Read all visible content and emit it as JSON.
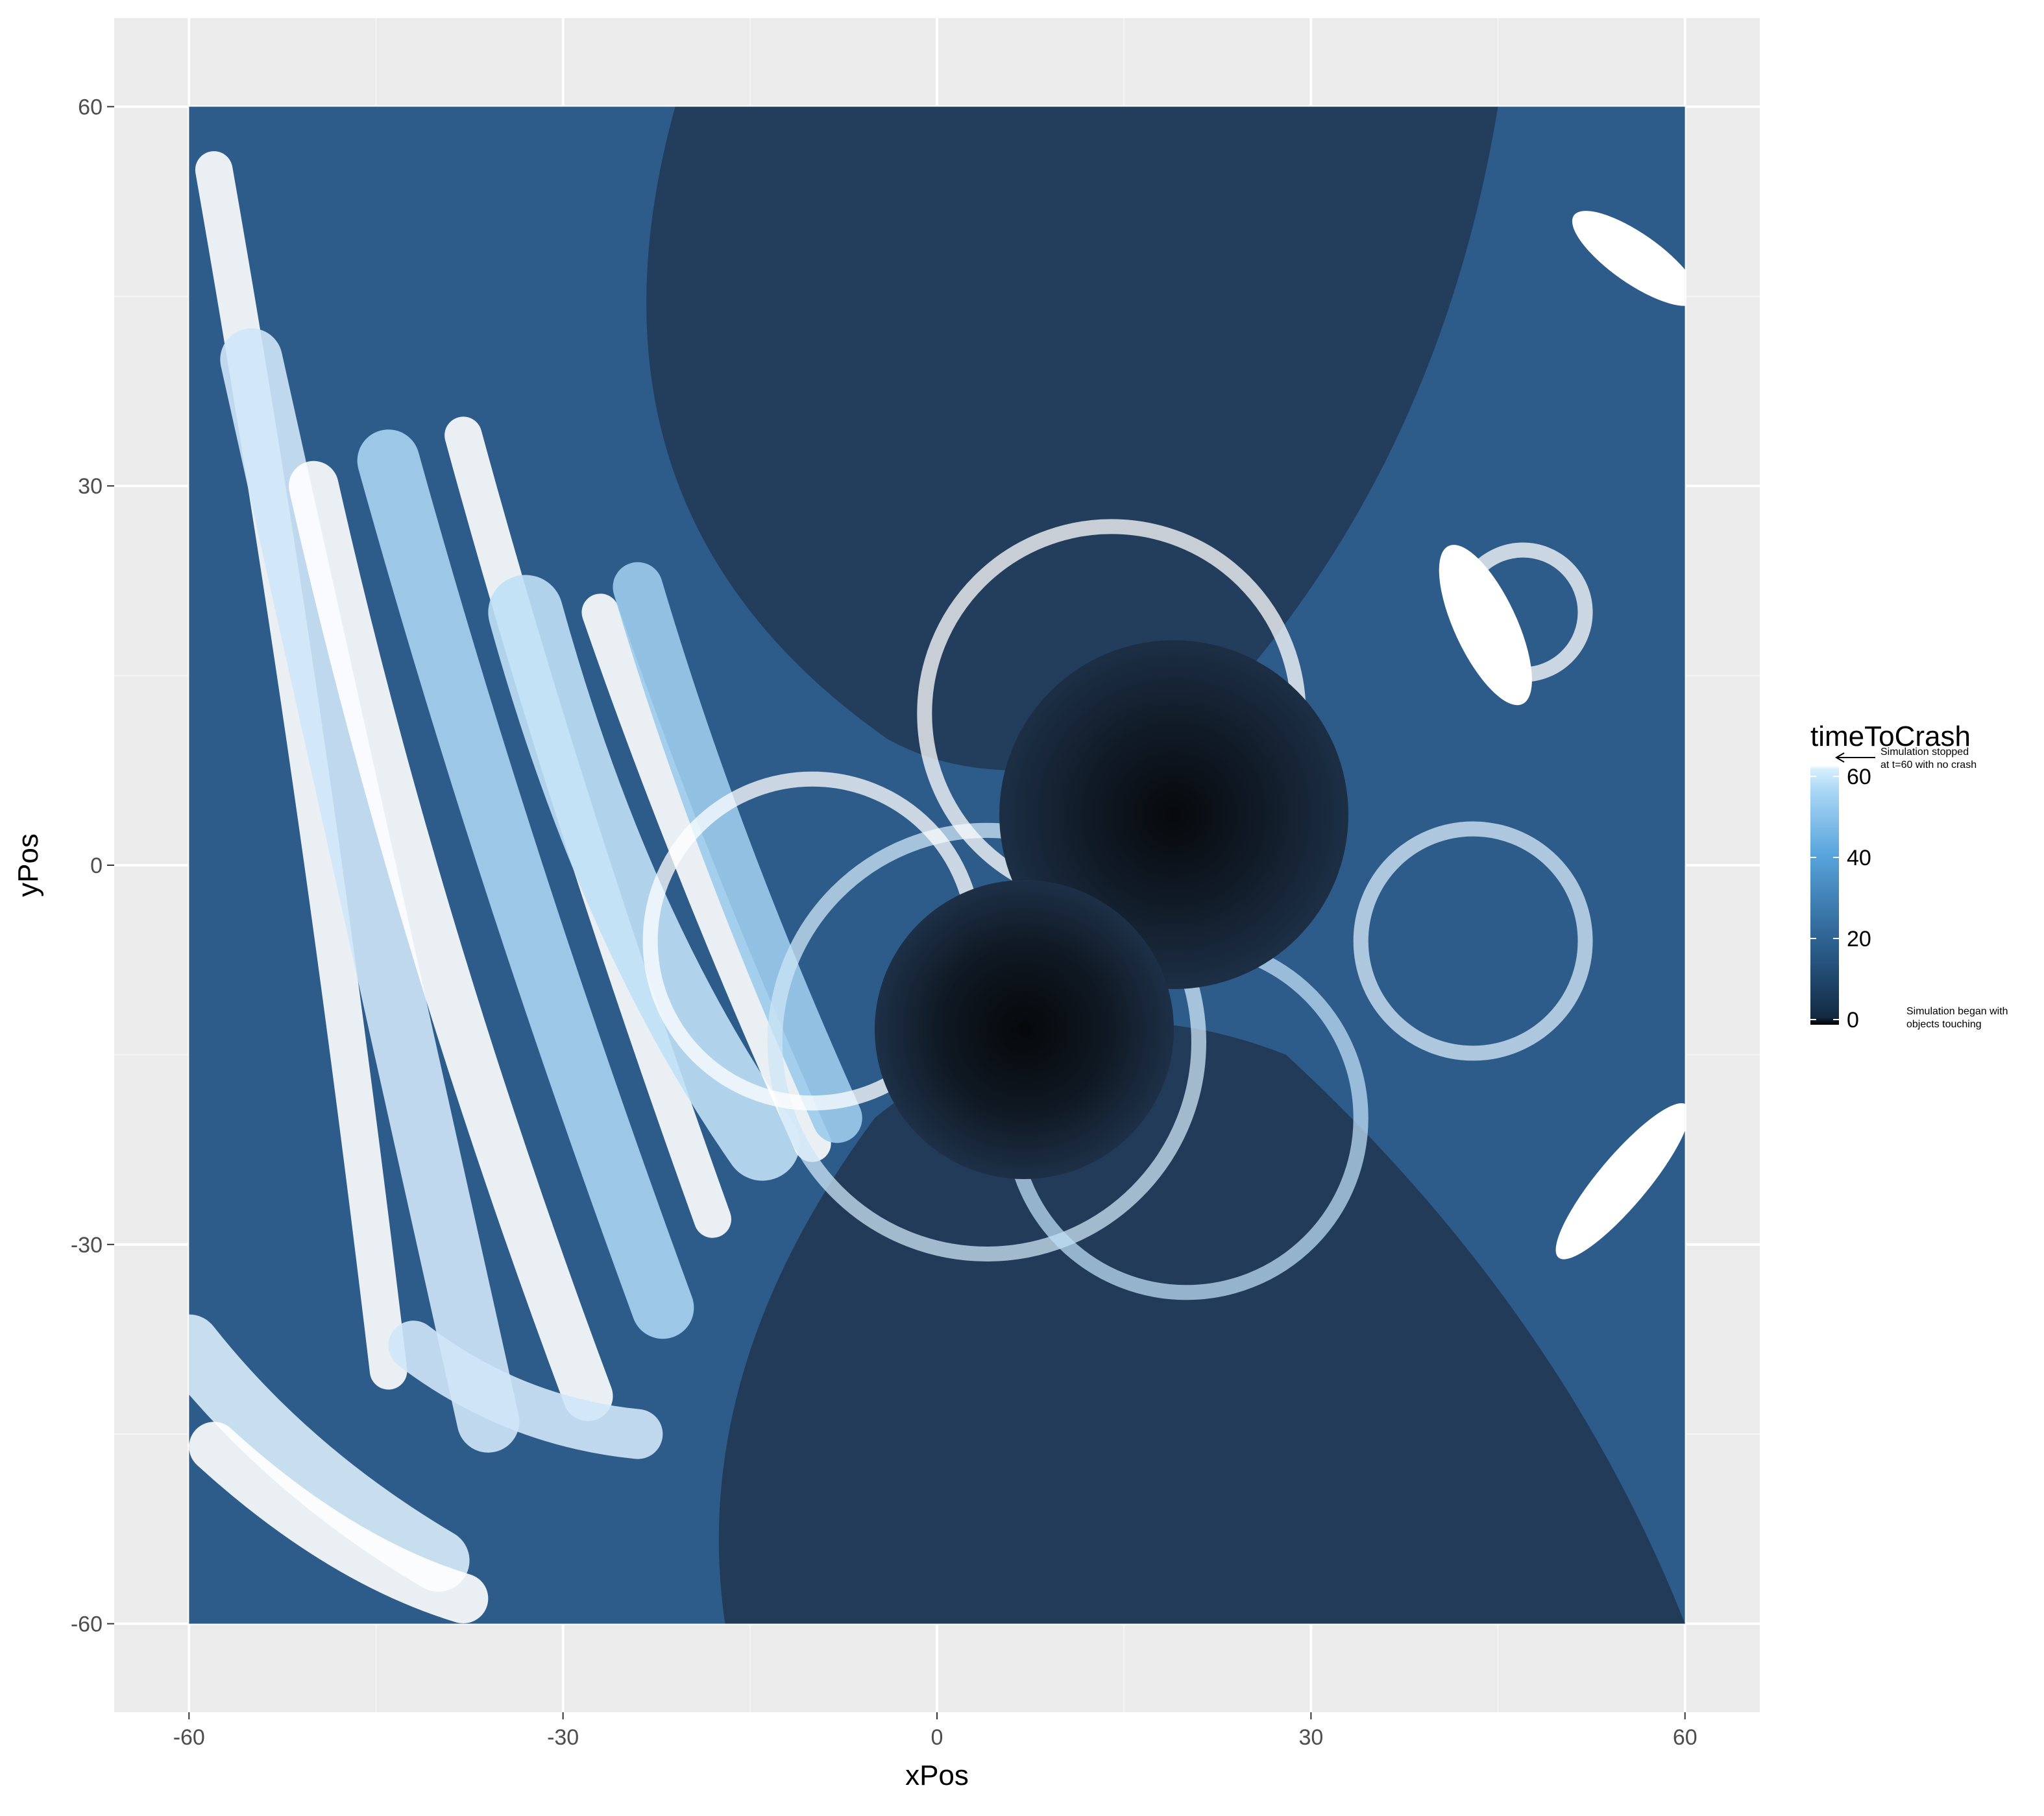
{
  "chart_data": {
    "type": "heatmap",
    "title": "",
    "xlabel": "xPos",
    "ylabel": "yPos",
    "xlim": [
      -66,
      66
    ],
    "ylim": [
      -67,
      67
    ],
    "data_extent": {
      "x": [
        -60,
        60
      ],
      "y": [
        -60,
        60
      ]
    },
    "x_ticks": [
      -60,
      -30,
      0,
      30,
      60
    ],
    "y_ticks": [
      -60,
      -30,
      0,
      30,
      60
    ],
    "x_tick_labels": [
      "-60",
      "-30",
      "0",
      "30",
      "60"
    ],
    "y_tick_labels": [
      "-60",
      "-30",
      "0",
      "30",
      "60"
    ],
    "grid": true,
    "fill_variable": "timeToCrash",
    "bodies": [
      {
        "name": "dark-center-upper",
        "x": 19,
        "y": 4,
        "value": 0
      },
      {
        "name": "dark-center-lower",
        "x": 7,
        "y": -13,
        "value": 0
      }
    ],
    "legend": {
      "title": "timeToCrash",
      "position": "right",
      "range": [
        0,
        60
      ],
      "breaks": [
        0,
        20,
        40,
        60
      ],
      "labels": [
        "0",
        "20",
        "40",
        "60"
      ],
      "gradient": [
        "#000000",
        "#132b43",
        "#2b5d8c",
        "#56b1f7",
        "#d6eefc",
        "#ffffff"
      ],
      "annotations": {
        "top": [
          "Simulation stopped",
          "at t=60 with no crash"
        ],
        "bottom": [
          "Simulation began with",
          "objects touching"
        ]
      }
    },
    "colors": {
      "panel_background": "#ebebeb",
      "grid_major": "#ffffff",
      "grid_minor": "#f5f5f5",
      "fill_dark": "#0b1018",
      "fill_mid": "#24405f",
      "fill_base": "#2e5c8a",
      "fill_light": "#ffffff"
    }
  }
}
